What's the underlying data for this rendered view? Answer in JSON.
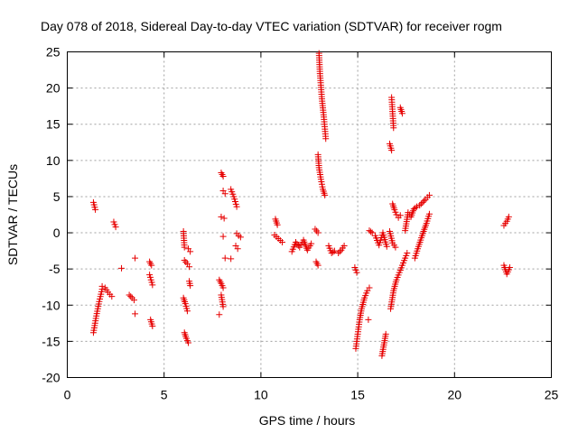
{
  "chart_data": {
    "type": "scatter",
    "title": "Day 078 of 2018, Sidereal Day-to-day VTEC variation (SDTVAR) for receiver rogm",
    "xlabel": "GPS time / hours",
    "ylabel": "SDTVAR / TECUs",
    "xlim": [
      0,
      25
    ],
    "ylim": [
      -20,
      25
    ],
    "xticks": [
      0,
      5,
      10,
      15,
      20,
      25
    ],
    "yticks": [
      -20,
      -15,
      -10,
      -5,
      0,
      5,
      10,
      15,
      20,
      25
    ],
    "grid": true,
    "marker": "+",
    "color": "#e60000",
    "segments": [
      {
        "x": [
          1.35,
          1.45
        ],
        "y": [
          4.2,
          3.2
        ]
      },
      {
        "x": [
          1.35,
          1.5,
          1.65,
          1.8
        ],
        "y": [
          -13.8,
          -11.5,
          -9.5,
          -7.8
        ]
      },
      {
        "x": [
          1.8,
          1.95,
          2.1,
          2.3
        ],
        "y": [
          -7.4,
          -7.6,
          -8.2,
          -8.8
        ]
      },
      {
        "x": [
          2.4,
          2.5
        ],
        "y": [
          1.5,
          0.8
        ]
      },
      {
        "x": [
          2.8
        ],
        "y": [
          -4.9
        ]
      },
      {
        "x": [
          3.2,
          3.35,
          3.45
        ],
        "y": [
          -8.6,
          -9.0,
          -9.3
        ]
      },
      {
        "x": [
          3.5
        ],
        "y": [
          -3.5
        ]
      },
      {
        "x": [
          3.5
        ],
        "y": [
          -11.2
        ]
      },
      {
        "x": [
          4.25,
          4.35
        ],
        "y": [
          -4.0,
          -4.5
        ]
      },
      {
        "x": [
          4.25,
          4.4
        ],
        "y": [
          -5.8,
          -7.2
        ]
      },
      {
        "x": [
          4.3,
          4.4
        ],
        "y": [
          -12.0,
          -12.9
        ]
      },
      {
        "x": [
          6.0,
          6.05
        ],
        "y": [
          0.2,
          -2.0
        ]
      },
      {
        "x": [
          6.05,
          6.2,
          6.3
        ],
        "y": [
          -3.8,
          -4.3,
          -4.7
        ]
      },
      {
        "x": [
          6.0,
          6.1,
          6.2
        ],
        "y": [
          -9.0,
          -9.8,
          -10.8
        ]
      },
      {
        "x": [
          6.05,
          6.15,
          6.25
        ],
        "y": [
          -13.8,
          -14.6,
          -15.2
        ]
      },
      {
        "x": [
          6.25,
          6.35
        ],
        "y": [
          -2.2,
          -2.6
        ]
      },
      {
        "x": [
          6.3,
          6.35
        ],
        "y": [
          -6.7,
          -7.3
        ]
      },
      {
        "x": [
          7.85,
          7.95,
          8.05
        ],
        "y": [
          -6.5,
          -7.0,
          -7.6
        ]
      },
      {
        "x": [
          7.95,
          8.05
        ],
        "y": [
          -8.6,
          -10.2
        ]
      },
      {
        "x": [
          7.85
        ],
        "y": [
          -11.3
        ]
      },
      {
        "x": [
          7.95,
          8.05
        ],
        "y": [
          8.3,
          7.8
        ]
      },
      {
        "x": [
          8.05,
          8.15
        ],
        "y": [
          5.8,
          5.4
        ]
      },
      {
        "x": [
          7.95,
          8.1
        ],
        "y": [
          2.2,
          2.0
        ]
      },
      {
        "x": [
          8.05
        ],
        "y": [
          -0.5
        ]
      },
      {
        "x": [
          8.15
        ],
        "y": [
          -3.5
        ]
      },
      {
        "x": [
          8.45
        ],
        "y": [
          -3.6
        ]
      },
      {
        "x": [
          8.45,
          8.6,
          8.75
        ],
        "y": [
          6.0,
          5.0,
          3.6
        ]
      },
      {
        "x": [
          8.7,
          8.8
        ],
        "y": [
          -1.8,
          -2.2
        ]
      },
      {
        "x": [
          8.75,
          8.85,
          8.95
        ],
        "y": [
          -0.1,
          -0.4,
          -0.6
        ]
      },
      {
        "x": [
          10.75,
          10.85
        ],
        "y": [
          1.9,
          1.1
        ]
      },
      {
        "x": [
          10.7,
          10.9,
          11.1
        ],
        "y": [
          -0.3,
          -0.8,
          -1.3
        ]
      },
      {
        "x": [
          11.6,
          11.8,
          12.0,
          12.2,
          12.4,
          12.6
        ],
        "y": [
          -2.6,
          -1.3,
          -2.0,
          -1.0,
          -2.4,
          -1.5
        ]
      },
      {
        "x": [
          12.85,
          12.95
        ],
        "y": [
          -4.0,
          -4.5
        ]
      },
      {
        "x": [
          12.8,
          12.95
        ],
        "y": [
          0.5,
          0.0
        ]
      },
      {
        "x": [
          12.95,
          13.0,
          13.1,
          13.2,
          13.3
        ],
        "y": [
          10.8,
          9.0,
          7.4,
          6.0,
          5.2
        ]
      },
      {
        "x": [
          13.0,
          13.05,
          13.15,
          13.25,
          13.35
        ],
        "y": [
          24.8,
          22.0,
          18.5,
          16.0,
          13.0
        ]
      },
      {
        "x": [
          13.5,
          13.65,
          13.8
        ],
        "y": [
          -1.8,
          -2.8,
          -2.5
        ]
      },
      {
        "x": [
          14.0,
          14.15,
          14.3
        ],
        "y": [
          -2.8,
          -2.4,
          -1.8
        ]
      },
      {
        "x": [
          14.85,
          14.95
        ],
        "y": [
          -4.8,
          -5.5
        ]
      },
      {
        "x": [
          14.9,
          15.0,
          15.1,
          15.2,
          15.35,
          15.5,
          15.6
        ],
        "y": [
          -16.0,
          -14.0,
          -12.0,
          -10.5,
          -9.0,
          -8.0,
          -7.6
        ]
      },
      {
        "x": [
          15.55
        ],
        "y": [
          -12.0
        ]
      },
      {
        "x": [
          15.6,
          15.75
        ],
        "y": [
          0.3,
          0.0
        ]
      },
      {
        "x": [
          15.9,
          16.1,
          16.3,
          16.5
        ],
        "y": [
          -0.4,
          -1.7,
          0.0,
          -1.9
        ]
      },
      {
        "x": [
          16.25,
          16.35,
          16.45
        ],
        "y": [
          -17.0,
          -15.5,
          -14.0
        ]
      },
      {
        "x": [
          16.65,
          16.75
        ],
        "y": [
          12.3,
          11.4
        ]
      },
      {
        "x": [
          16.75,
          16.85
        ],
        "y": [
          18.7,
          14.5
        ]
      },
      {
        "x": [
          16.65,
          16.8,
          16.95
        ],
        "y": [
          0.2,
          -1.4,
          -2.0
        ]
      },
      {
        "x": [
          16.8,
          16.9,
          17.0,
          17.1,
          17.2
        ],
        "y": [
          4.0,
          3.2,
          2.5,
          2.1,
          2.4
        ]
      },
      {
        "x": [
          16.7,
          16.85,
          17.0,
          17.15,
          17.3,
          17.45,
          17.55
        ],
        "y": [
          -10.5,
          -8.0,
          -6.5,
          -5.5,
          -4.5,
          -3.5,
          -2.8
        ]
      },
      {
        "x": [
          17.2,
          17.3
        ],
        "y": [
          17.3,
          16.5
        ]
      },
      {
        "x": [
          17.45,
          17.6,
          17.75,
          17.9,
          18.05,
          18.2,
          18.35,
          18.5,
          18.7
        ],
        "y": [
          0.3,
          2.8,
          2.2,
          3.3,
          3.6,
          3.8,
          4.2,
          4.6,
          5.2
        ]
      },
      {
        "x": [
          17.95,
          18.1,
          18.25,
          18.4,
          18.55,
          18.7
        ],
        "y": [
          -3.5,
          -2.2,
          -1.0,
          0.2,
          1.3,
          2.6
        ]
      },
      {
        "x": [
          22.55,
          22.7,
          22.8
        ],
        "y": [
          1.0,
          1.6,
          2.2
        ]
      },
      {
        "x": [
          22.55,
          22.7,
          22.85
        ],
        "y": [
          -4.5,
          -5.7,
          -4.8
        ]
      }
    ]
  }
}
